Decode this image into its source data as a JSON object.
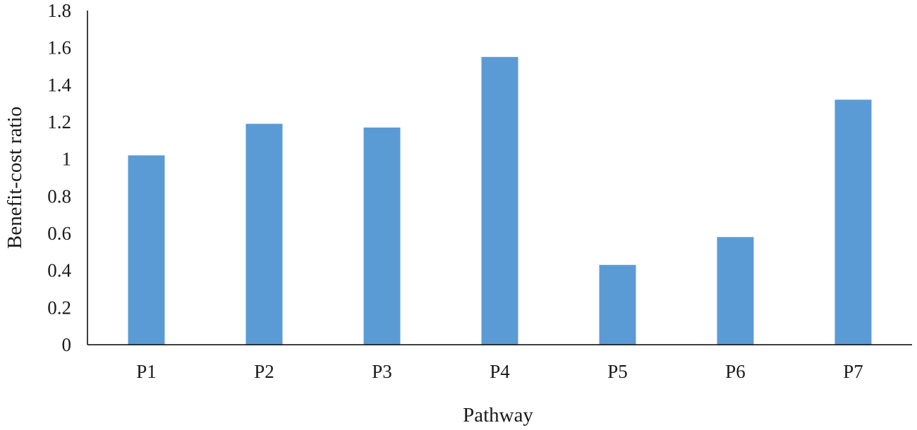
{
  "chart_data": {
    "type": "bar",
    "title": "",
    "xlabel": "Pathway",
    "ylabel": "Benefit-cost ratio",
    "categories": [
      "P1",
      "P2",
      "P3",
      "P4",
      "P5",
      "P6",
      "P7"
    ],
    "values": [
      1.02,
      1.19,
      1.17,
      1.55,
      0.43,
      0.58,
      1.32
    ],
    "ylim": [
      0,
      1.8
    ],
    "yticks": [
      "0",
      "0.2",
      "0.4",
      "0.6",
      "0.8",
      "1",
      "1.2",
      "1.4",
      "1.6",
      "1.8"
    ],
    "grid": false,
    "legend": "none",
    "bar_color": "#5b9bd5"
  }
}
